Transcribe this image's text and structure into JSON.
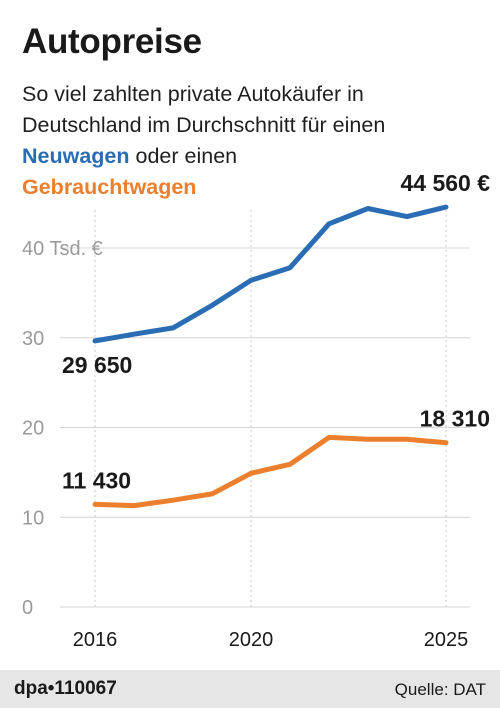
{
  "header": {
    "title": "Autopreise",
    "subtitle_line1": "So viel zahlten private Autokäufer in",
    "subtitle_line2": "Deutschland im Durchschnitt für einen",
    "subtitle_new_label": "Neuwagen",
    "subtitle_connector": " oder einen",
    "subtitle_used_label": "Gebrauchtwagen"
  },
  "footer": {
    "credit": "dpa•110067",
    "source": "Quelle: DAT"
  },
  "colors": {
    "new": "#2a6db4",
    "used": "#ec7f2d",
    "grid": "#d4d4d4",
    "axis_text": "#9a9a9a"
  },
  "chart_data": {
    "type": "line",
    "x": [
      2016,
      2017,
      2018,
      2019,
      2020,
      2021,
      2022,
      2023,
      2024,
      2025
    ],
    "x_ticks": [
      {
        "value": 2016,
        "label": "2016"
      },
      {
        "value": 2020,
        "label": "2020"
      },
      {
        "value": 2025,
        "label": "2025"
      }
    ],
    "y_ticks": [
      {
        "value": 0,
        "label": "0"
      },
      {
        "value": 10,
        "label": "10"
      },
      {
        "value": 20,
        "label": "20"
      },
      {
        "value": 30,
        "label": "30"
      },
      {
        "value": 40,
        "label": "40 Tsd. €"
      }
    ],
    "ylim": [
      0,
      45
    ],
    "xlim": [
      2016,
      2025
    ],
    "grid": true,
    "series": [
      {
        "name": "Neuwagen",
        "color": "#2a6db4",
        "values": [
          29.65,
          30.4,
          31.1,
          33.6,
          36.4,
          37.8,
          42.7,
          44.4,
          43.5,
          44.56
        ],
        "labels": [
          {
            "index": 0,
            "text": "29 650",
            "position": "below"
          },
          {
            "index": 9,
            "text": "44 560 €",
            "position": "above"
          }
        ]
      },
      {
        "name": "Gebrauchtwagen",
        "color": "#ec7f2d",
        "values": [
          11.43,
          11.3,
          11.9,
          12.6,
          14.9,
          15.9,
          18.9,
          18.7,
          18.7,
          18.31
        ],
        "labels": [
          {
            "index": 0,
            "text": "11 430",
            "position": "above"
          },
          {
            "index": 9,
            "text": "18 310",
            "position": "above"
          }
        ]
      }
    ]
  }
}
